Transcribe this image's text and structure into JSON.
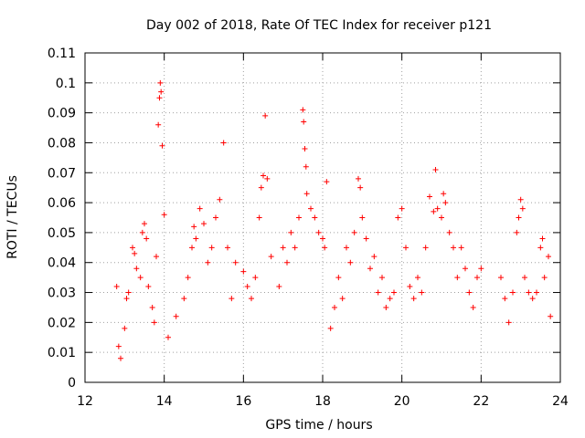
{
  "chart_data": {
    "type": "scatter",
    "title": "Day 002 of 2018, Rate Of TEC Index for receiver p121",
    "xlabel": "GPS time / hours",
    "ylabel": "ROTI / TECUs",
    "xlim": [
      12,
      24
    ],
    "ylim": [
      0,
      0.11
    ],
    "x_ticks": [
      12,
      14,
      16,
      18,
      20,
      22,
      24
    ],
    "x_tick_labels": [
      "12",
      "14",
      "16",
      "18",
      "20",
      "22",
      "24"
    ],
    "y_ticks": [
      0,
      0.01,
      0.02,
      0.03,
      0.04,
      0.05,
      0.06,
      0.07,
      0.08,
      0.09,
      0.1,
      0.11
    ],
    "y_tick_labels": [
      "0",
      "0.01",
      "0.02",
      "0.03",
      "0.04",
      "0.05",
      "0.06",
      "0.07",
      "0.08",
      "0.09",
      "0.1",
      "0.11"
    ],
    "grid": true,
    "marker": "plus",
    "color": "#ff0000",
    "series": [
      {
        "name": "ROTI",
        "points": [
          [
            12.8,
            0.032
          ],
          [
            12.85,
            0.012
          ],
          [
            12.9,
            0.008
          ],
          [
            13.0,
            0.018
          ],
          [
            13.05,
            0.028
          ],
          [
            13.1,
            0.03
          ],
          [
            13.2,
            0.045
          ],
          [
            13.25,
            0.043
          ],
          [
            13.3,
            0.038
          ],
          [
            13.4,
            0.035
          ],
          [
            13.45,
            0.05
          ],
          [
            13.5,
            0.053
          ],
          [
            13.55,
            0.048
          ],
          [
            13.6,
            0.032
          ],
          [
            13.7,
            0.025
          ],
          [
            13.75,
            0.02
          ],
          [
            13.8,
            0.042
          ],
          [
            13.85,
            0.086
          ],
          [
            13.88,
            0.095
          ],
          [
            13.9,
            0.1
          ],
          [
            13.92,
            0.097
          ],
          [
            13.95,
            0.079
          ],
          [
            14.0,
            0.056
          ],
          [
            14.1,
            0.015
          ],
          [
            14.3,
            0.022
          ],
          [
            14.5,
            0.028
          ],
          [
            14.6,
            0.035
          ],
          [
            14.7,
            0.045
          ],
          [
            14.75,
            0.052
          ],
          [
            14.8,
            0.048
          ],
          [
            14.9,
            0.058
          ],
          [
            15.0,
            0.053
          ],
          [
            15.1,
            0.04
          ],
          [
            15.2,
            0.045
          ],
          [
            15.3,
            0.055
          ],
          [
            15.4,
            0.061
          ],
          [
            15.5,
            0.08
          ],
          [
            15.6,
            0.045
          ],
          [
            15.7,
            0.028
          ],
          [
            15.8,
            0.04
          ],
          [
            16.0,
            0.037
          ],
          [
            16.1,
            0.032
          ],
          [
            16.2,
            0.028
          ],
          [
            16.3,
            0.035
          ],
          [
            16.4,
            0.055
          ],
          [
            16.45,
            0.065
          ],
          [
            16.5,
            0.069
          ],
          [
            16.55,
            0.089
          ],
          [
            16.6,
            0.068
          ],
          [
            16.7,
            0.042
          ],
          [
            16.9,
            0.032
          ],
          [
            17.0,
            0.045
          ],
          [
            17.1,
            0.04
          ],
          [
            17.2,
            0.05
          ],
          [
            17.3,
            0.045
          ],
          [
            17.4,
            0.055
          ],
          [
            17.5,
            0.091
          ],
          [
            17.52,
            0.087
          ],
          [
            17.55,
            0.078
          ],
          [
            17.58,
            0.072
          ],
          [
            17.6,
            0.063
          ],
          [
            17.7,
            0.058
          ],
          [
            17.8,
            0.055
          ],
          [
            17.9,
            0.05
          ],
          [
            18.0,
            0.048
          ],
          [
            18.05,
            0.045
          ],
          [
            18.1,
            0.067
          ],
          [
            18.2,
            0.018
          ],
          [
            18.3,
            0.025
          ],
          [
            18.4,
            0.035
          ],
          [
            18.5,
            0.028
          ],
          [
            18.6,
            0.045
          ],
          [
            18.7,
            0.04
          ],
          [
            18.8,
            0.05
          ],
          [
            18.9,
            0.068
          ],
          [
            18.95,
            0.065
          ],
          [
            19.0,
            0.055
          ],
          [
            19.1,
            0.048
          ],
          [
            19.2,
            0.038
          ],
          [
            19.3,
            0.042
          ],
          [
            19.4,
            0.03
          ],
          [
            19.5,
            0.035
          ],
          [
            19.6,
            0.025
          ],
          [
            19.7,
            0.028
          ],
          [
            19.8,
            0.03
          ],
          [
            19.9,
            0.055
          ],
          [
            20.0,
            0.058
          ],
          [
            20.1,
            0.045
          ],
          [
            20.2,
            0.032
          ],
          [
            20.3,
            0.028
          ],
          [
            20.4,
            0.035
          ],
          [
            20.5,
            0.03
          ],
          [
            20.6,
            0.045
          ],
          [
            20.7,
            0.062
          ],
          [
            20.8,
            0.057
          ],
          [
            20.85,
            0.071
          ],
          [
            20.9,
            0.058
          ],
          [
            21.0,
            0.055
          ],
          [
            21.05,
            0.063
          ],
          [
            21.1,
            0.06
          ],
          [
            21.2,
            0.05
          ],
          [
            21.3,
            0.045
          ],
          [
            21.4,
            0.035
          ],
          [
            21.5,
            0.045
          ],
          [
            21.6,
            0.038
          ],
          [
            21.7,
            0.03
          ],
          [
            21.8,
            0.025
          ],
          [
            21.9,
            0.035
          ],
          [
            22.0,
            0.038
          ],
          [
            22.5,
            0.035
          ],
          [
            22.6,
            0.028
          ],
          [
            22.7,
            0.02
          ],
          [
            22.8,
            0.03
          ],
          [
            22.9,
            0.05
          ],
          [
            22.95,
            0.055
          ],
          [
            23.0,
            0.061
          ],
          [
            23.05,
            0.058
          ],
          [
            23.1,
            0.035
          ],
          [
            23.2,
            0.03
          ],
          [
            23.3,
            0.028
          ],
          [
            23.4,
            0.03
          ],
          [
            23.5,
            0.045
          ],
          [
            23.55,
            0.048
          ],
          [
            23.6,
            0.035
          ],
          [
            23.7,
            0.042
          ],
          [
            23.75,
            0.022
          ]
        ]
      }
    ]
  }
}
